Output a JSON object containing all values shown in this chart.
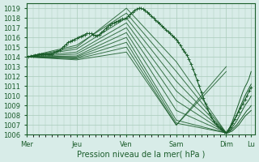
{
  "title": "",
  "xlabel": "Pression niveau de la mer( hPa )",
  "ylabel": "",
  "bg_color": "#d8ece8",
  "plot_bg_color": "#d8ece8",
  "grid_color": "#aaccbb",
  "line_color": "#1a5c2a",
  "marker_color": "#1a5c2a",
  "ylim": [
    1006,
    1019.5
  ],
  "yticks": [
    1006,
    1007,
    1008,
    1009,
    1010,
    1011,
    1012,
    1013,
    1014,
    1015,
    1016,
    1017,
    1018,
    1019
  ],
  "xtick_labels": [
    "Mer",
    "Jeu",
    "Ven",
    "Sam",
    "Dim",
    "Lu"
  ],
  "xtick_positions": [
    0,
    48,
    96,
    144,
    192,
    216
  ],
  "total_x": 220,
  "lines": [
    {
      "x": [
        0,
        48,
        96,
        144,
        192
      ],
      "y": [
        1014.0,
        1015.0,
        1019.0,
        1013.5,
        1006.2
      ]
    },
    {
      "x": [
        0,
        48,
        96,
        144,
        192
      ],
      "y": [
        1014.0,
        1015.2,
        1018.5,
        1012.5,
        1006.2
      ]
    },
    {
      "x": [
        0,
        48,
        96,
        144,
        192
      ],
      "y": [
        1014.0,
        1014.8,
        1018.0,
        1011.5,
        1006.2
      ]
    },
    {
      "x": [
        0,
        48,
        96,
        144,
        192
      ],
      "y": [
        1014.0,
        1014.5,
        1017.5,
        1010.5,
        1006.2
      ]
    },
    {
      "x": [
        0,
        48,
        96,
        144,
        192
      ],
      "y": [
        1014.0,
        1014.3,
        1017.0,
        1009.5,
        1006.2
      ]
    },
    {
      "x": [
        0,
        48,
        96,
        144,
        192
      ],
      "y": [
        1014.0,
        1014.1,
        1016.5,
        1008.5,
        1006.2
      ]
    },
    {
      "x": [
        0,
        48,
        96,
        144,
        192
      ],
      "y": [
        1014.0,
        1014.0,
        1016.0,
        1007.5,
        1006.2
      ]
    },
    {
      "x": [
        0,
        48,
        96,
        144,
        192
      ],
      "y": [
        1014.0,
        1013.9,
        1015.5,
        1007.2,
        1006.2
      ]
    },
    {
      "x": [
        0,
        48,
        96,
        144,
        192
      ],
      "y": [
        1014.0,
        1013.8,
        1015.0,
        1007.0,
        1012.5
      ]
    },
    {
      "x": [
        0,
        48,
        96,
        144,
        192
      ],
      "y": [
        1014.0,
        1013.7,
        1014.5,
        1007.0,
        1013.0
      ]
    }
  ],
  "detailed_line_x": [
    0,
    2,
    4,
    6,
    8,
    10,
    12,
    14,
    16,
    18,
    20,
    22,
    24,
    26,
    28,
    30,
    32,
    34,
    36,
    38,
    40,
    42,
    44,
    46,
    48,
    50,
    52,
    54,
    56,
    58,
    60,
    62,
    64,
    66,
    68,
    70,
    72,
    74,
    76,
    78,
    80,
    82,
    84,
    86,
    88,
    90,
    92,
    94,
    96,
    98,
    100,
    102,
    104,
    106,
    108,
    110,
    112,
    114,
    116,
    118,
    120,
    122,
    124,
    126,
    128,
    130,
    132,
    134,
    136,
    138,
    140,
    142,
    144,
    146,
    148,
    150,
    152,
    154,
    156,
    158,
    160,
    162,
    164,
    166,
    168,
    170,
    172,
    174,
    176,
    178,
    180,
    182,
    184,
    186,
    188,
    190,
    192,
    194,
    196,
    198,
    200,
    202,
    204,
    206,
    208,
    210,
    212,
    214,
    216
  ],
  "detailed_line_y": [
    1014.0,
    1014.0,
    1014.1,
    1014.1,
    1014.2,
    1014.2,
    1014.3,
    1014.3,
    1014.3,
    1014.3,
    1014.3,
    1014.3,
    1014.3,
    1014.4,
    1014.5,
    1014.6,
    1014.7,
    1014.9,
    1015.1,
    1015.3,
    1015.5,
    1015.6,
    1015.7,
    1015.8,
    1015.9,
    1016.0,
    1016.1,
    1016.2,
    1016.3,
    1016.4,
    1016.4,
    1016.4,
    1016.3,
    1016.2,
    1016.2,
    1016.3,
    1016.5,
    1016.7,
    1016.9,
    1017.1,
    1017.3,
    1017.4,
    1017.5,
    1017.6,
    1017.7,
    1017.8,
    1017.9,
    1017.9,
    1018.0,
    1018.2,
    1018.4,
    1018.6,
    1018.8,
    1018.9,
    1019.0,
    1019.0,
    1018.9,
    1018.8,
    1018.6,
    1018.4,
    1018.2,
    1018.0,
    1017.8,
    1017.6,
    1017.4,
    1017.2,
    1017.0,
    1016.8,
    1016.6,
    1016.4,
    1016.2,
    1016.0,
    1015.8,
    1015.5,
    1015.2,
    1014.8,
    1014.5,
    1014.2,
    1013.8,
    1013.3,
    1012.8,
    1012.2,
    1011.6,
    1011.0,
    1010.4,
    1009.8,
    1009.2,
    1008.7,
    1008.2,
    1007.8,
    1007.4,
    1007.1,
    1006.9,
    1006.7,
    1006.5,
    1006.3,
    1006.2,
    1006.5,
    1006.8,
    1007.2,
    1007.6,
    1008.0,
    1008.4,
    1008.8,
    1009.2,
    1009.6,
    1010.0,
    1010.5,
    1010.9
  ],
  "recovery_x": [
    192,
    194,
    196,
    198,
    200,
    202,
    204,
    206,
    208,
    210,
    212,
    214,
    216
  ],
  "recovery_lines": [
    [
      1006.2,
      1006.5,
      1006.9,
      1007.4,
      1008.0,
      1008.6,
      1009.2,
      1009.8,
      1010.4,
      1010.9,
      1011.3,
      1011.8,
      1012.5
    ],
    [
      1006.2,
      1006.4,
      1006.7,
      1007.1,
      1007.5,
      1008.0,
      1008.5,
      1009.0,
      1009.5,
      1010.0,
      1010.4,
      1010.8,
      1011.2
    ],
    [
      1006.2,
      1006.3,
      1006.5,
      1006.8,
      1007.1,
      1007.4,
      1007.8,
      1008.2,
      1008.6,
      1009.0,
      1009.3,
      1009.6,
      1010.0
    ],
    [
      1006.2,
      1006.3,
      1006.4,
      1006.6,
      1006.8,
      1007.0,
      1007.3,
      1007.6,
      1007.9,
      1008.2,
      1008.5,
      1008.7,
      1009.0
    ],
    [
      1006.2,
      1006.2,
      1006.3,
      1006.4,
      1006.6,
      1006.8,
      1007.0,
      1007.3,
      1007.6,
      1007.9,
      1008.1,
      1008.3,
      1008.5
    ]
  ]
}
